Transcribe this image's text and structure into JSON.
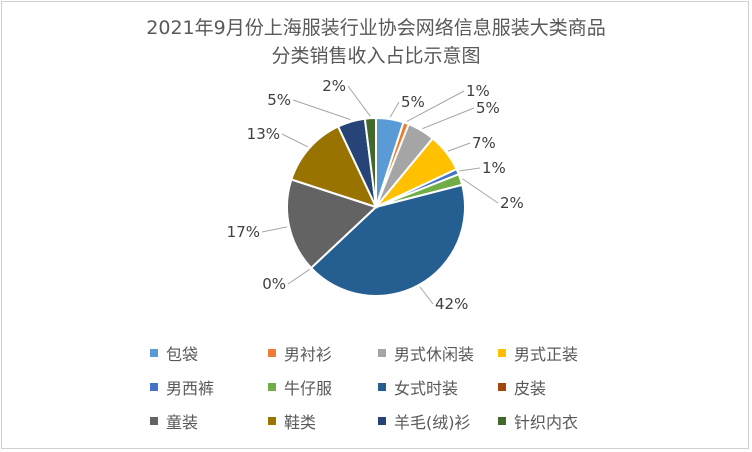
{
  "chart_data": {
    "type": "pie",
    "title_line1": "2021年9月份上海服装行业协会网络信息服装大类商品",
    "title_line2": "分类销售收入占比示意图",
    "categories": [
      "包袋",
      "男衬衫",
      "男式休闲装",
      "男式正装",
      "男西裤",
      "牛仔服",
      "女式时装",
      "皮装",
      "童装",
      "鞋类",
      "羊毛(绒)衫",
      "针织内衣"
    ],
    "values": [
      5,
      1,
      5,
      7,
      1,
      2,
      42,
      0,
      17,
      13,
      5,
      2
    ],
    "labels": [
      "5%",
      "1%",
      "5%",
      "7%",
      "1%",
      "2%",
      "42%",
      "0%",
      "17%",
      "13%",
      "5%",
      "2%"
    ],
    "colors": [
      "#5b9bd5",
      "#ed7d31",
      "#a5a5a5",
      "#ffc000",
      "#4472c4",
      "#70ad47",
      "#255e91",
      "#9e480e",
      "#636363",
      "#997300",
      "#264478",
      "#43682b"
    ],
    "legend_position": "bottom"
  }
}
